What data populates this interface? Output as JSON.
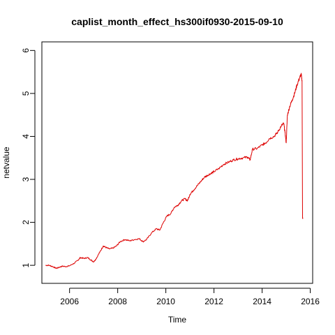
{
  "chart_data": {
    "type": "line",
    "title": "caplist_month_effect_hs300if0930-2015-09-10",
    "xlabel": "Time",
    "ylabel": "netvalue",
    "xlim": [
      2004.85,
      2016.1
    ],
    "ylim": [
      0.58,
      6.2
    ],
    "x_ticks": [
      2006,
      2008,
      2010,
      2012,
      2014,
      2016
    ],
    "y_ticks": [
      1,
      2,
      3,
      4,
      5,
      6
    ],
    "grid": false,
    "legend": "none",
    "series": [
      {
        "color": "#dd0000",
        "points": [
          [
            2005.0,
            1.0
          ],
          [
            2005.15,
            1.0
          ],
          [
            2005.3,
            0.97
          ],
          [
            2005.45,
            0.93
          ],
          [
            2005.55,
            0.95
          ],
          [
            2005.7,
            0.98
          ],
          [
            2005.85,
            0.97
          ],
          [
            2006.0,
            0.99
          ],
          [
            2006.2,
            1.05
          ],
          [
            2006.35,
            1.12
          ],
          [
            2006.45,
            1.18
          ],
          [
            2006.6,
            1.16
          ],
          [
            2006.75,
            1.18
          ],
          [
            2006.9,
            1.12
          ],
          [
            2007.0,
            1.08
          ],
          [
            2007.1,
            1.15
          ],
          [
            2007.25,
            1.3
          ],
          [
            2007.4,
            1.45
          ],
          [
            2007.5,
            1.42
          ],
          [
            2007.65,
            1.38
          ],
          [
            2007.8,
            1.4
          ],
          [
            2007.95,
            1.45
          ],
          [
            2008.1,
            1.55
          ],
          [
            2008.3,
            1.6
          ],
          [
            2008.5,
            1.57
          ],
          [
            2008.7,
            1.6
          ],
          [
            2008.9,
            1.62
          ],
          [
            2009.05,
            1.55
          ],
          [
            2009.2,
            1.6
          ],
          [
            2009.4,
            1.75
          ],
          [
            2009.6,
            1.85
          ],
          [
            2009.75,
            1.82
          ],
          [
            2009.9,
            2.0
          ],
          [
            2010.05,
            2.15
          ],
          [
            2010.2,
            2.2
          ],
          [
            2010.35,
            2.35
          ],
          [
            2010.5,
            2.4
          ],
          [
            2010.65,
            2.5
          ],
          [
            2010.8,
            2.55
          ],
          [
            2010.9,
            2.5
          ],
          [
            2011.0,
            2.65
          ],
          [
            2011.15,
            2.75
          ],
          [
            2011.3,
            2.85
          ],
          [
            2011.45,
            2.95
          ],
          [
            2011.6,
            3.05
          ],
          [
            2011.75,
            3.1
          ],
          [
            2011.9,
            3.15
          ],
          [
            2012.0,
            3.18
          ],
          [
            2012.2,
            3.25
          ],
          [
            2012.4,
            3.35
          ],
          [
            2012.6,
            3.4
          ],
          [
            2012.8,
            3.45
          ],
          [
            2013.0,
            3.48
          ],
          [
            2013.2,
            3.5
          ],
          [
            2013.4,
            3.52
          ],
          [
            2013.5,
            3.45
          ],
          [
            2013.6,
            3.7
          ],
          [
            2013.8,
            3.72
          ],
          [
            2014.0,
            3.8
          ],
          [
            2014.15,
            3.85
          ],
          [
            2014.3,
            3.95
          ],
          [
            2014.5,
            4.0
          ],
          [
            2014.65,
            4.1
          ],
          [
            2014.8,
            4.25
          ],
          [
            2014.9,
            4.3
          ],
          [
            2014.95,
            4.1
          ],
          [
            2015.0,
            3.85
          ],
          [
            2015.05,
            4.5
          ],
          [
            2015.15,
            4.7
          ],
          [
            2015.25,
            4.85
          ],
          [
            2015.35,
            5.0
          ],
          [
            2015.45,
            5.2
          ],
          [
            2015.55,
            5.35
          ],
          [
            2015.62,
            5.45
          ],
          [
            2015.66,
            5.3
          ],
          [
            2015.68,
            2.1
          ],
          [
            2015.69,
            2.1
          ]
        ]
      }
    ]
  }
}
